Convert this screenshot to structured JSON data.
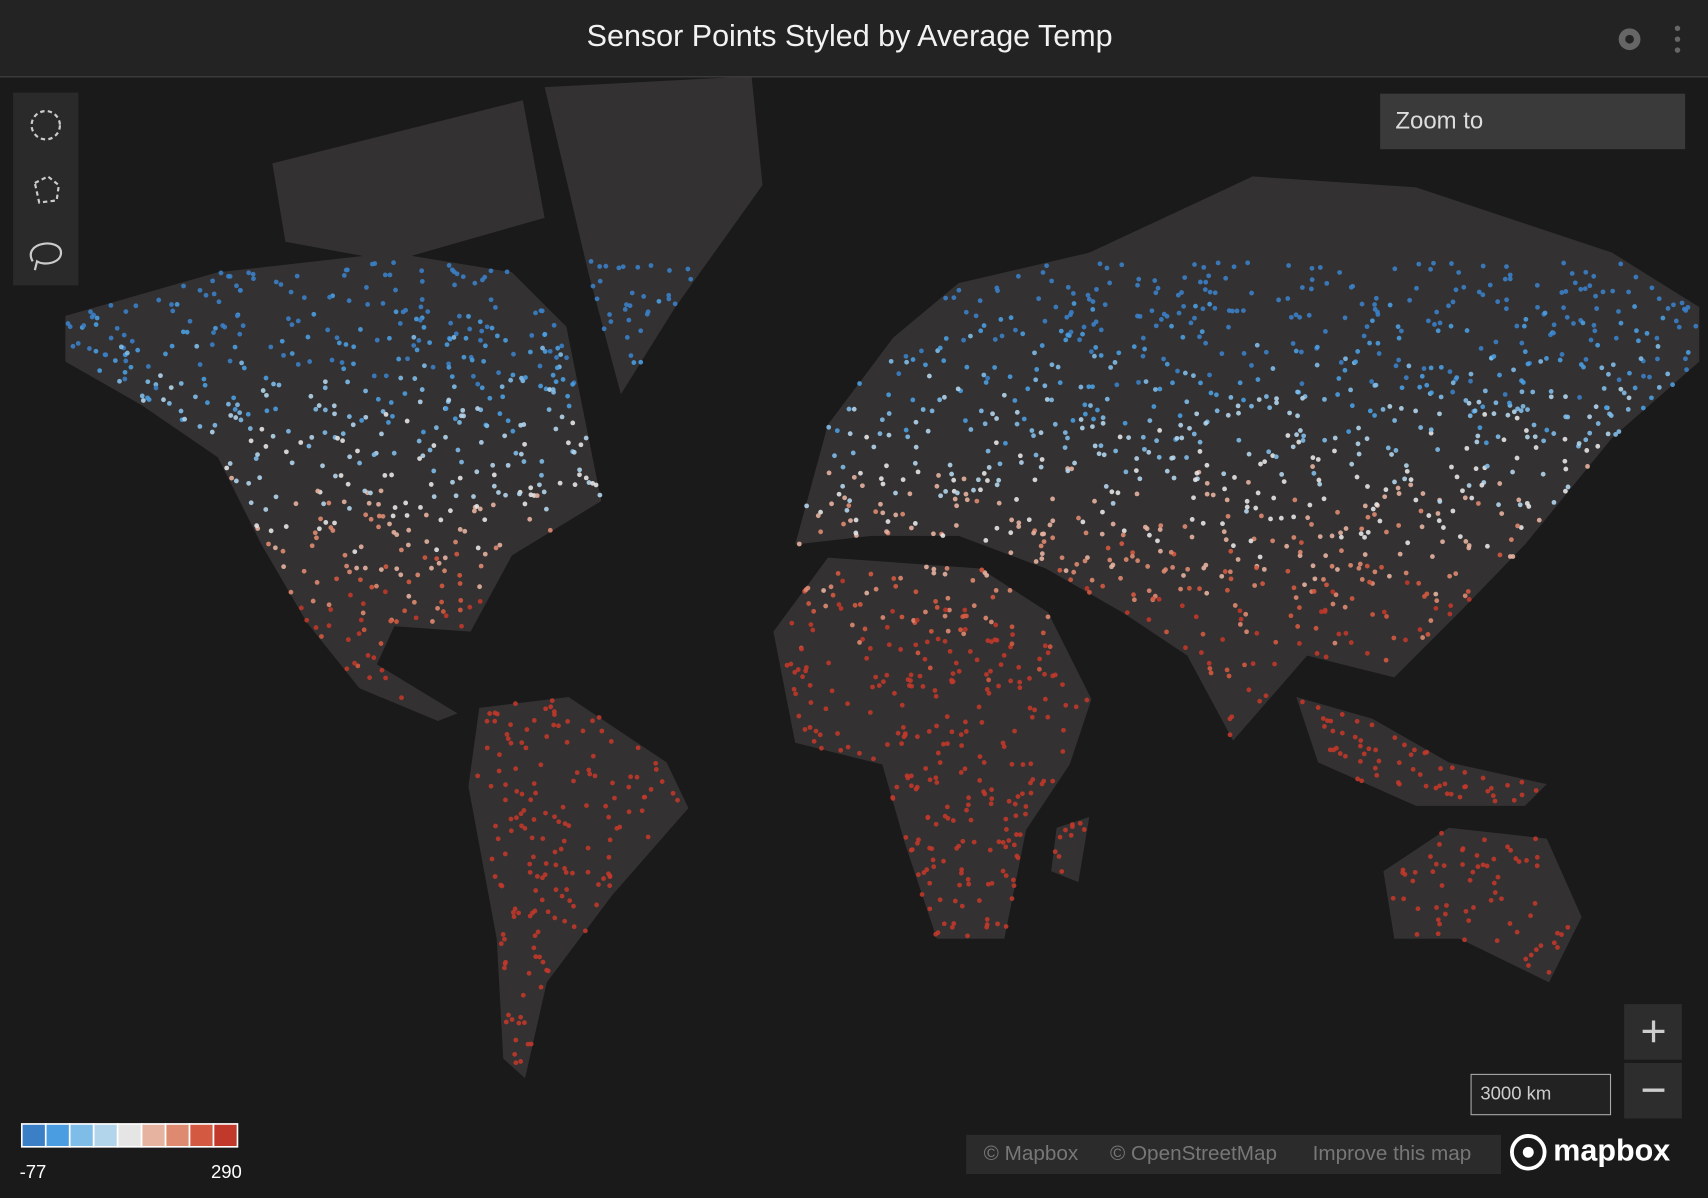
{
  "header": {
    "title": "Sensor Points Styled by Average Temp"
  },
  "map": {
    "zoom_to": "Zoom to",
    "scale": "3000 km",
    "attribution": [
      "© Mapbox",
      "© OpenStreetMap",
      "Improve this map"
    ],
    "logo": "mapbox"
  },
  "legend": {
    "colors": [
      "#3b7fc6",
      "#4a9de0",
      "#7fbde9",
      "#b3d5ec",
      "#e5e5e5",
      "#e6b3a1",
      "#de8a71",
      "#d35a41",
      "#c0392b"
    ],
    "min": -77,
    "max": 290
  }
}
